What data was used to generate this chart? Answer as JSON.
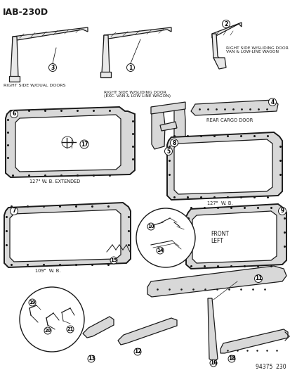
{
  "title": "IAB-230D",
  "doc_number": "94375  230",
  "bg_color": "#f5f5f0",
  "text_color": "#1a1a1a",
  "labels": {
    "right_dual": "RIGHT SIDE W/DUAL DOORS",
    "right_sliding": "RIGHT SIDE W/SLIDING DOOR\n(EXC. VAN & LOW LINE WAGON)",
    "right_sliding_van": "RIGHT SIDE W/SLIDING DOOR\nVAN & LOW-LINE WAGON",
    "rear_cargo": "REAR CARGO DOOR",
    "wb127_ext": "127\" W. B. EXTENDED",
    "wb127": "127\"  W. B.",
    "wb109": "109\"  W. B.",
    "front_left": "FRONT\nLEFT"
  }
}
